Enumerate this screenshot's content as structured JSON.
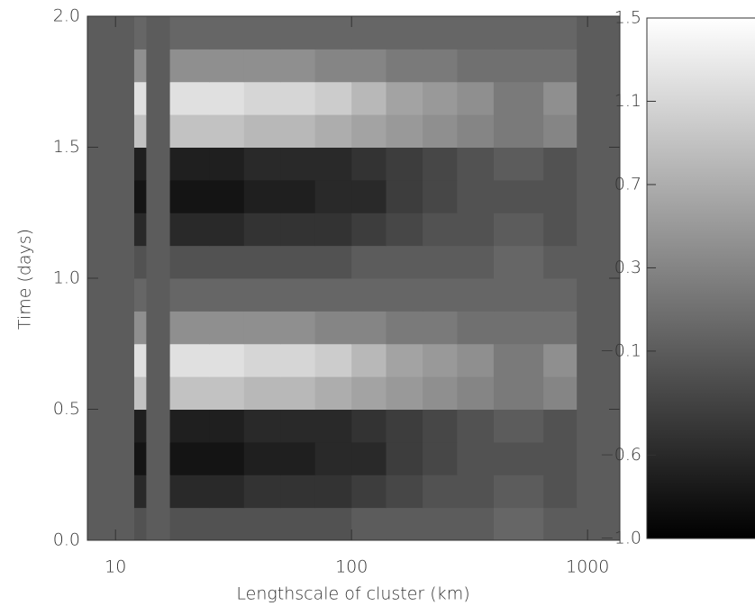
{
  "chart_data": {
    "type": "heatmap",
    "xlabel": "Lengthscale of cluster (km)",
    "ylabel": "Time (days)",
    "xscale": "log",
    "xlim": [
      7.6,
      1370
    ],
    "xticks": [
      10,
      100,
      1000
    ],
    "ylim": [
      0,
      2
    ],
    "yticks": [
      {
        "value": 0,
        "label": "0.0"
      },
      0.5,
      {
        "value": 1,
        "label": "1.0"
      },
      1.5,
      {
        "value": 2,
        "label": "2.0"
      }
    ],
    "xbins": [
      7.6,
      12,
      13.5,
      17,
      25,
      35,
      50,
      70,
      100,
      140,
      200,
      280,
      400,
      650,
      900,
      1370
    ],
    "ybins": [
      0,
      0.125,
      0.25,
      0.375,
      0.5,
      0.625,
      0.75,
      0.875,
      1,
      1.125,
      1.25,
      1.375,
      1.5,
      1.625,
      1.75,
      1.875,
      2
    ],
    "z": [
      [
        -0.1,
        -0.2,
        -0.1,
        -0.2,
        -0.2,
        -0.2,
        -0.2,
        -0.2,
        -0.1,
        -0.1,
        -0.1,
        -0.1,
        0.0,
        -0.1,
        -0.1
      ],
      [
        -0.1,
        -0.6,
        -0.1,
        -0.6,
        -0.6,
        -0.5,
        -0.5,
        -0.5,
        -0.4,
        -0.3,
        -0.2,
        -0.2,
        -0.1,
        -0.2,
        -0.1
      ],
      [
        -0.1,
        -0.8,
        -0.1,
        -0.8,
        -0.8,
        -0.7,
        -0.7,
        -0.6,
        -0.6,
        -0.4,
        -0.3,
        -0.2,
        -0.2,
        -0.2,
        -0.1
      ],
      [
        -0.1,
        -0.7,
        -0.1,
        -0.7,
        -0.7,
        -0.6,
        -0.6,
        -0.6,
        -0.5,
        -0.4,
        -0.3,
        -0.2,
        -0.1,
        -0.2,
        -0.1
      ],
      [
        -0.1,
        0.9,
        -0.1,
        0.9,
        0.9,
        0.8,
        0.8,
        0.7,
        0.6,
        0.5,
        0.4,
        0.3,
        0.2,
        0.3,
        -0.1
      ],
      [
        -0.1,
        1.2,
        -0.1,
        1.2,
        1.2,
        1.1,
        1.1,
        1.0,
        0.8,
        0.6,
        0.5,
        0.4,
        0.2,
        0.4,
        -0.1
      ],
      [
        -0.1,
        0.4,
        -0.1,
        0.4,
        0.4,
        0.4,
        0.4,
        0.3,
        0.3,
        0.2,
        0.2,
        0.1,
        0.1,
        0.1,
        -0.1
      ],
      [
        -0.1,
        0.0,
        -0.1,
        0.0,
        0.0,
        0.0,
        0.0,
        0.0,
        0.0,
        0.0,
        0.0,
        0.0,
        0.0,
        0.0,
        -0.1
      ],
      [
        -0.1,
        -0.2,
        -0.1,
        -0.2,
        -0.2,
        -0.2,
        -0.2,
        -0.2,
        -0.1,
        -0.1,
        -0.1,
        -0.1,
        0.0,
        -0.1,
        -0.1
      ],
      [
        -0.1,
        -0.6,
        -0.1,
        -0.6,
        -0.6,
        -0.5,
        -0.5,
        -0.5,
        -0.4,
        -0.3,
        -0.2,
        -0.2,
        -0.1,
        -0.2,
        -0.1
      ],
      [
        -0.1,
        -0.8,
        -0.1,
        -0.8,
        -0.8,
        -0.7,
        -0.7,
        -0.6,
        -0.6,
        -0.4,
        -0.3,
        -0.2,
        -0.2,
        -0.2,
        -0.1
      ],
      [
        -0.1,
        -0.7,
        -0.1,
        -0.7,
        -0.7,
        -0.6,
        -0.6,
        -0.6,
        -0.5,
        -0.4,
        -0.3,
        -0.2,
        -0.1,
        -0.2,
        -0.1
      ],
      [
        -0.1,
        0.9,
        -0.1,
        0.9,
        0.9,
        0.8,
        0.8,
        0.7,
        0.6,
        0.5,
        0.4,
        0.3,
        0.2,
        0.3,
        -0.1
      ],
      [
        -0.1,
        1.2,
        -0.1,
        1.2,
        1.2,
        1.1,
        1.1,
        1.0,
        0.8,
        0.6,
        0.5,
        0.4,
        0.2,
        0.4,
        -0.1
      ],
      [
        -0.1,
        0.4,
        -0.1,
        0.4,
        0.4,
        0.4,
        0.4,
        0.3,
        0.3,
        0.2,
        0.2,
        0.1,
        0.1,
        0.1,
        -0.1
      ],
      [
        -0.1,
        0.0,
        -0.1,
        0.0,
        0.0,
        0.0,
        0.0,
        0.0,
        0.0,
        0.0,
        0.0,
        0.0,
        0.0,
        0.0,
        -0.1
      ]
    ],
    "clim": [
      -1,
      1.5
    ],
    "cticks": [
      {
        "value": -1,
        "label": "−1.0"
      },
      {
        "value": -0.6,
        "label": "−0.6"
      },
      {
        "value": -0.1,
        "label": "−0.1"
      },
      0.3,
      0.7,
      1.1,
      1.5
    ],
    "colormap": [
      "#000000",
      "#ffffff"
    ]
  }
}
